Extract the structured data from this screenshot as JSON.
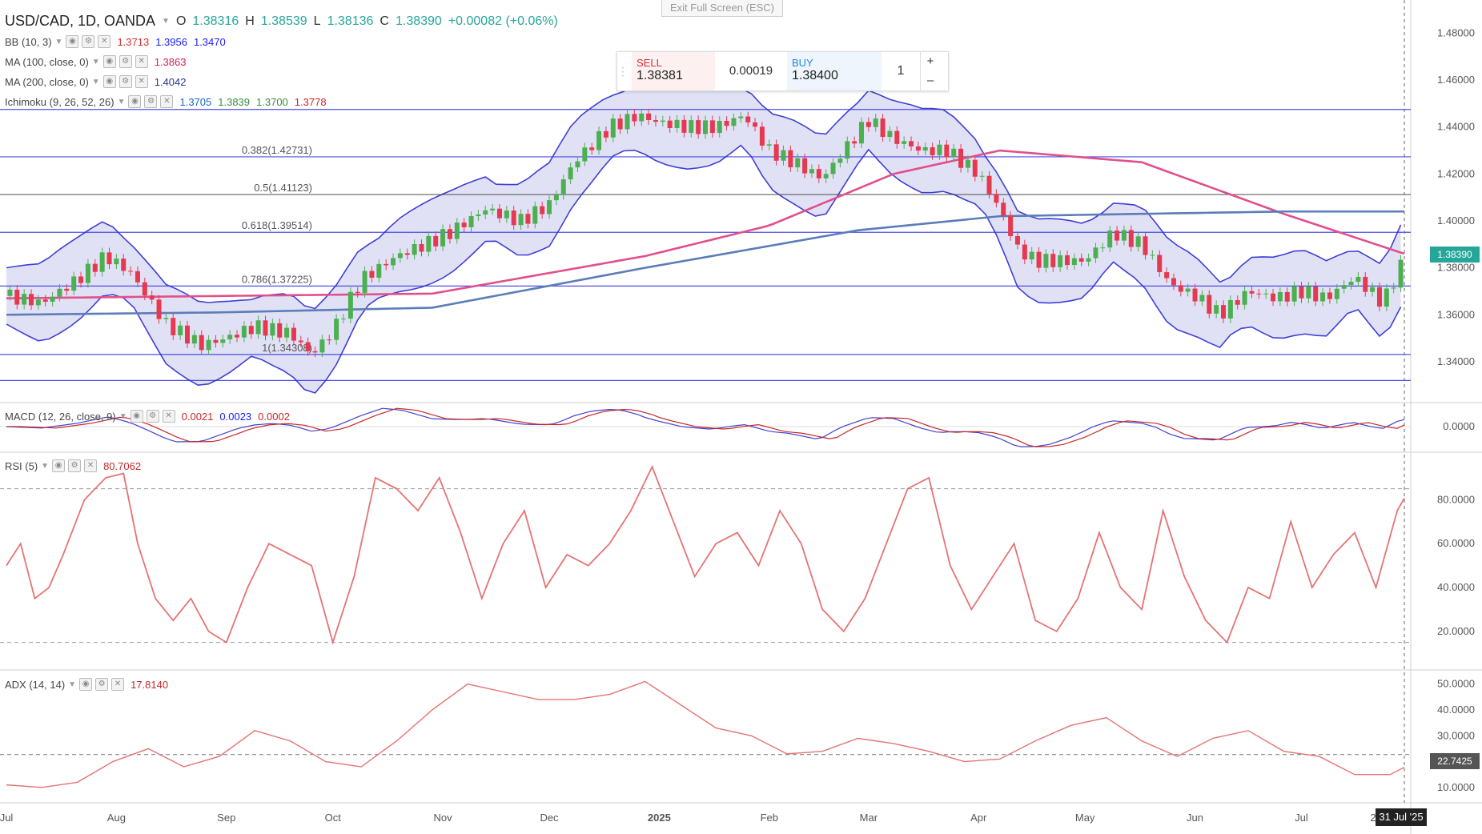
{
  "header": {
    "symbol": "USD/CAD, 1D, OANDA",
    "o_label": "O",
    "o_value": "1.38316",
    "h_label": "H",
    "h_value": "1.38539",
    "l_label": "L",
    "l_value": "1.38136",
    "c_label": "C",
    "c_value": "1.38390",
    "change": "+0.00082 (+0.06%)",
    "exit_fullscreen": "Exit Full Screen (ESC)"
  },
  "trade_panel": {
    "sell_label": "SELL",
    "sell_price": "1.38381",
    "spread": "0.00019",
    "buy_label": "BUY",
    "buy_price": "1.38400",
    "quantity": "1",
    "plus": "+",
    "minus": "–"
  },
  "indicators": [
    {
      "name": "BB (10, 3)",
      "values": [
        {
          "v": "1.3713",
          "color": "#d32f2f"
        },
        {
          "v": "1.3956",
          "color": "#1a1aff"
        },
        {
          "v": "1.3470",
          "color": "#1a1aff"
        }
      ]
    },
    {
      "name": "MA (100, close, 0)",
      "values": [
        {
          "v": "1.3863",
          "color": "#d81b60"
        }
      ]
    },
    {
      "name": "MA (200, close, 0)",
      "values": [
        {
          "v": "1.4042",
          "color": "#283593"
        }
      ]
    },
    {
      "name": "Ichimoku (9, 26, 52, 26)",
      "values": [
        {
          "v": "1.3705",
          "color": "#1565c0"
        },
        {
          "v": "1.3839",
          "color": "#388e3c"
        },
        {
          "v": "1.3700",
          "color": "#388e3c"
        },
        {
          "v": "1.3778",
          "color": "#c62828"
        }
      ]
    }
  ],
  "macd": {
    "name": "MACD (12, 26, close, 9)",
    "values": [
      {
        "v": "0.0021",
        "color": "#c62828"
      },
      {
        "v": "0.0023",
        "color": "#1a1aff"
      },
      {
        "v": "0.0002",
        "color": "#c62828"
      }
    ]
  },
  "rsi": {
    "name": "RSI (5)",
    "value": "80.7062",
    "color": "#c62828"
  },
  "adx": {
    "name": "ADX (14, 14)",
    "value": "17.8140",
    "color": "#c62828"
  },
  "price_tag": "1.38390",
  "adx_tag": "22.7425",
  "date_tag": "31 Jul '25",
  "colors": {
    "up": "#4caf50",
    "down": "#e53950",
    "bb": "#3f3fd6",
    "bb_fill": "#c9c9ee",
    "ma100": "#e0508c",
    "ma200": "#5b7db8",
    "rsi": "#e57373",
    "adx": "#e57373",
    "macd_line": "#4040d0",
    "signal_line": "#c62828",
    "fib": "#3030e0"
  },
  "chart_data": [
    {
      "type": "line",
      "title": "USD/CAD, 1D, OANDA",
      "ylim": [
        1.327,
        1.488
      ],
      "y_ticks": [
        "1.48000",
        "1.46000",
        "1.44000",
        "1.42000",
        "1.40000",
        "1.38000",
        "1.36000",
        "1.34000"
      ],
      "y_tick_values": [
        1.48,
        1.46,
        1.44,
        1.42,
        1.4,
        1.38,
        1.36,
        1.34
      ],
      "x_labels": [
        "Jul",
        "Aug",
        "Sep",
        "Oct",
        "Nov",
        "Dec",
        "2025",
        "Feb",
        "Mar",
        "Apr",
        "May",
        "Jun",
        "Jul",
        "22"
      ],
      "x_label_days": [
        0,
        31,
        62,
        92,
        123,
        153,
        184,
        215,
        243,
        274,
        304,
        335,
        365,
        386
      ],
      "fib_levels": [
        {
          "label": "0.382(1.42731)",
          "value": 1.42731
        },
        {
          "label": "0.5(1.41123)",
          "value": 1.41123
        },
        {
          "label": "0.618(1.39514)",
          "value": 1.39514
        },
        {
          "label": "0.786(1.37225)",
          "value": 1.37225
        },
        {
          "label": "1(1.34308)",
          "value": 1.34308
        },
        {
          "label": "",
          "value": 1.4475
        },
        {
          "label": "",
          "value": 1.332
        }
      ],
      "close_series": {
        "days": [
          0,
          10,
          20,
          28,
          35,
          45,
          55,
          62,
          70,
          80,
          86,
          92,
          100,
          110,
          118,
          125,
          135,
          145,
          153,
          160,
          170,
          178,
          184,
          192,
          200,
          208,
          215,
          222,
          230,
          236,
          243,
          250,
          258,
          265,
          274,
          280,
          285,
          290,
          295,
          304,
          312,
          320,
          328,
          335,
          342,
          350,
          358,
          365,
          372,
          380,
          388,
          394
        ],
        "close": [
          1.368,
          1.365,
          1.375,
          1.385,
          1.378,
          1.356,
          1.347,
          1.35,
          1.355,
          1.352,
          1.343,
          1.353,
          1.375,
          1.385,
          1.39,
          1.395,
          1.405,
          1.4,
          1.407,
          1.425,
          1.44,
          1.445,
          1.442,
          1.44,
          1.44,
          1.445,
          1.43,
          1.425,
          1.418,
          1.43,
          1.443,
          1.435,
          1.43,
          1.43,
          1.42,
          1.405,
          1.388,
          1.383,
          1.383,
          1.383,
          1.395,
          1.39,
          1.373,
          1.368,
          1.36,
          1.37,
          1.367,
          1.37,
          1.367,
          1.376,
          1.365,
          1.384
        ]
      },
      "series": [
        {
          "name": "MA (100, close, 0)",
          "x_days": [
            0,
            60,
            120,
            180,
            215,
            250,
            280,
            320,
            360,
            394
          ],
          "values": [
            1.367,
            1.368,
            1.369,
            1.385,
            1.398,
            1.42,
            1.43,
            1.425,
            1.403,
            1.386
          ]
        },
        {
          "name": "MA (200, close, 0)",
          "x_days": [
            0,
            60,
            120,
            180,
            240,
            280,
            320,
            360,
            394
          ],
          "values": [
            1.36,
            1.361,
            1.363,
            1.38,
            1.396,
            1.402,
            1.403,
            1.404,
            1.404
          ]
        }
      ]
    },
    {
      "type": "line",
      "title": "MACD (12, 26, close, 9)",
      "y_ticks": [
        "0.0000"
      ]
    },
    {
      "type": "line",
      "title": "RSI (5)",
      "ylim": [
        5,
        98
      ],
      "y_ticks": [
        "80.0000",
        "60.0000",
        "40.0000",
        "20.0000"
      ],
      "y_tick_values": [
        80,
        60,
        40,
        20
      ],
      "bands": [
        85,
        15
      ],
      "x_days": [
        0,
        4,
        8,
        12,
        16,
        22,
        28,
        33,
        37,
        42,
        47,
        52,
        57,
        62,
        68,
        74,
        80,
        86,
        92,
        98,
        104,
        110,
        116,
        122,
        128,
        134,
        140,
        146,
        152,
        158,
        164,
        170,
        176,
        182,
        188,
        194,
        200,
        206,
        212,
        218,
        224,
        230,
        236,
        242,
        248,
        254,
        260,
        266,
        272,
        278,
        284,
        290,
        296,
        302,
        308,
        314,
        320,
        326,
        332,
        338,
        344,
        350,
        356,
        362,
        368,
        374,
        380,
        386,
        392,
        394
      ],
      "values": [
        50,
        60,
        35,
        40,
        55,
        80,
        90,
        92,
        60,
        35,
        25,
        35,
        20,
        15,
        40,
        60,
        55,
        50,
        15,
        45,
        90,
        85,
        75,
        90,
        65,
        35,
        60,
        75,
        40,
        55,
        50,
        60,
        75,
        95,
        70,
        45,
        60,
        65,
        50,
        75,
        60,
        30,
        20,
        35,
        60,
        85,
        90,
        50,
        30,
        45,
        60,
        25,
        20,
        35,
        65,
        40,
        30,
        75,
        45,
        25,
        15,
        40,
        35,
        70,
        40,
        55,
        65,
        40,
        75,
        80.7
      ]
    },
    {
      "type": "line",
      "title": "ADX (14, 14)",
      "ylim": [
        5,
        53
      ],
      "y_ticks": [
        "50.0000",
        "40.0000",
        "30.0000",
        "20.0000",
        "10.0000"
      ],
      "y_tick_values": [
        50,
        40,
        30,
        20,
        10
      ],
      "bands": [
        22.7425
      ],
      "x_days": [
        0,
        10,
        20,
        30,
        40,
        50,
        60,
        70,
        80,
        90,
        100,
        110,
        120,
        130,
        140,
        150,
        160,
        170,
        180,
        190,
        200,
        210,
        220,
        230,
        240,
        250,
        260,
        270,
        280,
        290,
        300,
        310,
        320,
        330,
        340,
        350,
        360,
        370,
        380,
        390,
        394
      ],
      "values": [
        11,
        10,
        12,
        20,
        25,
        18,
        22,
        32,
        28,
        20,
        18,
        28,
        40,
        50,
        47,
        44,
        44,
        46,
        51,
        42,
        33,
        30,
        23,
        24,
        29,
        27,
        24,
        20,
        21,
        28,
        34,
        37,
        28,
        22,
        29,
        32,
        24,
        22,
        15,
        15,
        17.8
      ]
    }
  ]
}
